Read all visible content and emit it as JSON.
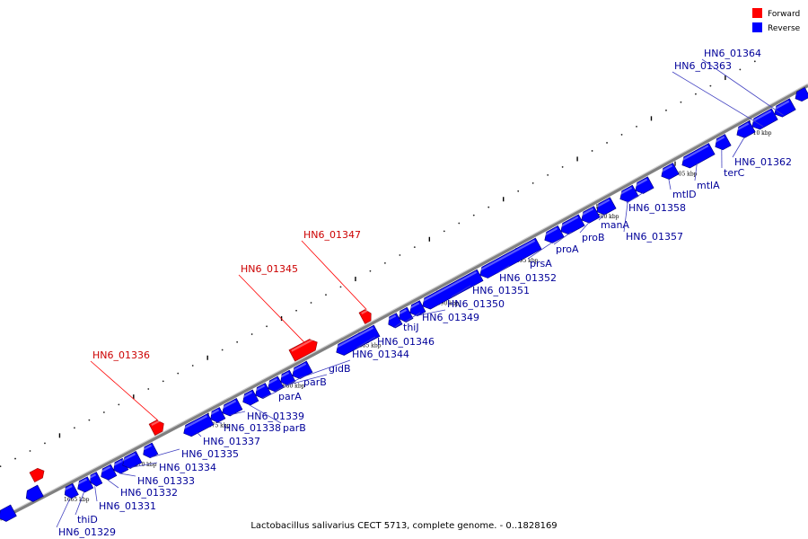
{
  "caption": "Lactobacillus salivarius CECT 5713, complete genome. - 0..1828169",
  "legend": [
    {
      "label": "Forward",
      "color": "#ff0000"
    },
    {
      "label": "Reverse",
      "color": "#0000ff"
    }
  ],
  "colors": {
    "forward": "#ff0000",
    "reverse": "#0000ff",
    "backbone": "#999999",
    "label_forward": "#cc0000",
    "label_reverse": "#000099"
  },
  "ticks": [
    {
      "label": "1665 kbp"
    },
    {
      "label": "1670 kbp"
    },
    {
      "label": "1675 kbp"
    },
    {
      "label": "1680 kbp"
    },
    {
      "label": "1685 kbp"
    },
    {
      "label": "1690 kbp"
    },
    {
      "label": "1695 kbp"
    },
    {
      "label": "1700 kbp"
    },
    {
      "label": "1705 kbp"
    },
    {
      "label": "1710 kbp"
    }
  ],
  "genes": [
    {
      "label": "HN6_01329",
      "strand": "reverse"
    },
    {
      "label": "thiD",
      "strand": "reverse"
    },
    {
      "label": "HN6_01331",
      "strand": "reverse"
    },
    {
      "label": "HN6_01332",
      "strand": "reverse"
    },
    {
      "label": "HN6_01333",
      "strand": "reverse"
    },
    {
      "label": "HN6_01334",
      "strand": "reverse"
    },
    {
      "label": "HN6_01335",
      "strand": "reverse"
    },
    {
      "label": "HN6_01336",
      "strand": "forward"
    },
    {
      "label": "HN6_01337",
      "strand": "reverse"
    },
    {
      "label": "HN6_01338",
      "strand": "reverse"
    },
    {
      "label": "HN6_01339",
      "strand": "reverse"
    },
    {
      "label": "parB",
      "strand": "reverse"
    },
    {
      "label": "parA",
      "strand": "reverse"
    },
    {
      "label": "parB",
      "strand": "reverse"
    },
    {
      "label": "gidB",
      "strand": "reverse"
    },
    {
      "label": "HN6_01344",
      "strand": "reverse"
    },
    {
      "label": "HN6_01345",
      "strand": "forward"
    },
    {
      "label": "HN6_01346",
      "strand": "reverse"
    },
    {
      "label": "HN6_01347",
      "strand": "forward"
    },
    {
      "label": "thiJ",
      "strand": "reverse"
    },
    {
      "label": "HN6_01349",
      "strand": "reverse"
    },
    {
      "label": "HN6_01350",
      "strand": "reverse"
    },
    {
      "label": "HN6_01351",
      "strand": "reverse"
    },
    {
      "label": "HN6_01352",
      "strand": "reverse"
    },
    {
      "label": "prsA",
      "strand": "reverse"
    },
    {
      "label": "proA",
      "strand": "reverse"
    },
    {
      "label": "proB",
      "strand": "reverse"
    },
    {
      "label": "manA",
      "strand": "reverse"
    },
    {
      "label": "HN6_01357",
      "strand": "reverse"
    },
    {
      "label": "HN6_01358",
      "strand": "reverse"
    },
    {
      "label": "mtlD",
      "strand": "reverse"
    },
    {
      "label": "mtlA",
      "strand": "reverse"
    },
    {
      "label": "terC",
      "strand": "reverse"
    },
    {
      "label": "HN6_01362",
      "strand": "reverse"
    },
    {
      "label": "HN6_01363",
      "strand": "reverse"
    },
    {
      "label": "HN6_01364",
      "strand": "reverse"
    }
  ]
}
